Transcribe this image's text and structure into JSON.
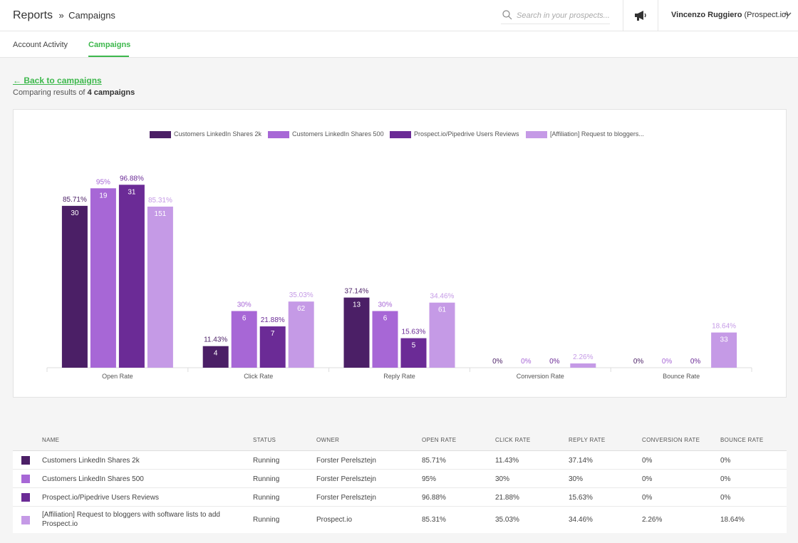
{
  "header": {
    "title": "Reports",
    "separator": "»",
    "subtitle": "Campaigns",
    "search_placeholder": "Search in your prospects...",
    "user_name": "Vincenzo Ruggiero",
    "user_org": "(Prospect.io)"
  },
  "tabs": [
    {
      "label": "Account Activity",
      "active": false
    },
    {
      "label": "Campaigns",
      "active": true
    }
  ],
  "back_link": "← Back to campaigns",
  "compare": {
    "prefix": "Comparing results of",
    "count": "4 campaigns"
  },
  "colors": {
    "accent": "#3db84c",
    "series": [
      "#4b1f66",
      "#a767d6",
      "#6b2b96",
      "#c59ae6"
    ]
  },
  "chart_data": {
    "type": "bar",
    "categories": [
      "Open Rate",
      "Click Rate",
      "Reply Rate",
      "Conversion Rate",
      "Bounce Rate"
    ],
    "ylim": [
      0,
      100
    ],
    "legend_position": "top",
    "grid": false,
    "series": [
      {
        "name": "Customers LinkedIn Shares 2k",
        "values": [
          85.71,
          11.43,
          37.14,
          0,
          0
        ],
        "labels": [
          "85.71%",
          "11.43%",
          "37.14%",
          "0%",
          "0%"
        ],
        "counts": [
          "30",
          "4",
          "13",
          "",
          ""
        ]
      },
      {
        "name": "Customers LinkedIn Shares 500",
        "values": [
          95,
          30,
          30,
          0,
          0
        ],
        "labels": [
          "95%",
          "30%",
          "30%",
          "0%",
          "0%"
        ],
        "counts": [
          "19",
          "6",
          "6",
          "",
          ""
        ]
      },
      {
        "name": "Prospect.io/Pipedrive Users Reviews",
        "values": [
          96.88,
          21.88,
          15.63,
          0,
          0
        ],
        "labels": [
          "96.88%",
          "21.88%",
          "15.63%",
          "0%",
          "0%"
        ],
        "counts": [
          "31",
          "7",
          "5",
          "",
          ""
        ]
      },
      {
        "name": "[Affiliation] Request to bloggers...",
        "values": [
          85.31,
          35.03,
          34.46,
          2.26,
          18.64
        ],
        "labels": [
          "85.31%",
          "35.03%",
          "34.46%",
          "2.26%",
          "18.64%"
        ],
        "counts": [
          "151",
          "62",
          "61",
          "",
          "33"
        ]
      }
    ]
  },
  "table": {
    "columns": [
      "Name",
      "Status",
      "Owner",
      "Open Rate",
      "Click Rate",
      "Reply Rate",
      "Conversion Rate",
      "Bounce Rate"
    ],
    "rows": [
      {
        "name": "Customers LinkedIn Shares 2k",
        "name2": "",
        "status": "Running",
        "owner": "Forster Perelsztejn",
        "open": "85.71%",
        "click": "11.43%",
        "reply": "37.14%",
        "conversion": "0%",
        "bounce": "0%"
      },
      {
        "name": "Customers LinkedIn Shares 500",
        "name2": "",
        "status": "Running",
        "owner": "Forster Perelsztejn",
        "open": "95%",
        "click": "30%",
        "reply": "30%",
        "conversion": "0%",
        "bounce": "0%"
      },
      {
        "name": "Prospect.io/Pipedrive Users Reviews",
        "name2": "",
        "status": "Running",
        "owner": "Forster Perelsztejn",
        "open": "96.88%",
        "click": "21.88%",
        "reply": "15.63%",
        "conversion": "0%",
        "bounce": "0%"
      },
      {
        "name": "[Affiliation] Request to bloggers with software lists to add",
        "name2": "Prospect.io",
        "status": "Running",
        "owner": "Prospect.io",
        "open": "85.31%",
        "click": "35.03%",
        "reply": "34.46%",
        "conversion": "2.26%",
        "bounce": "18.64%"
      }
    ]
  }
}
